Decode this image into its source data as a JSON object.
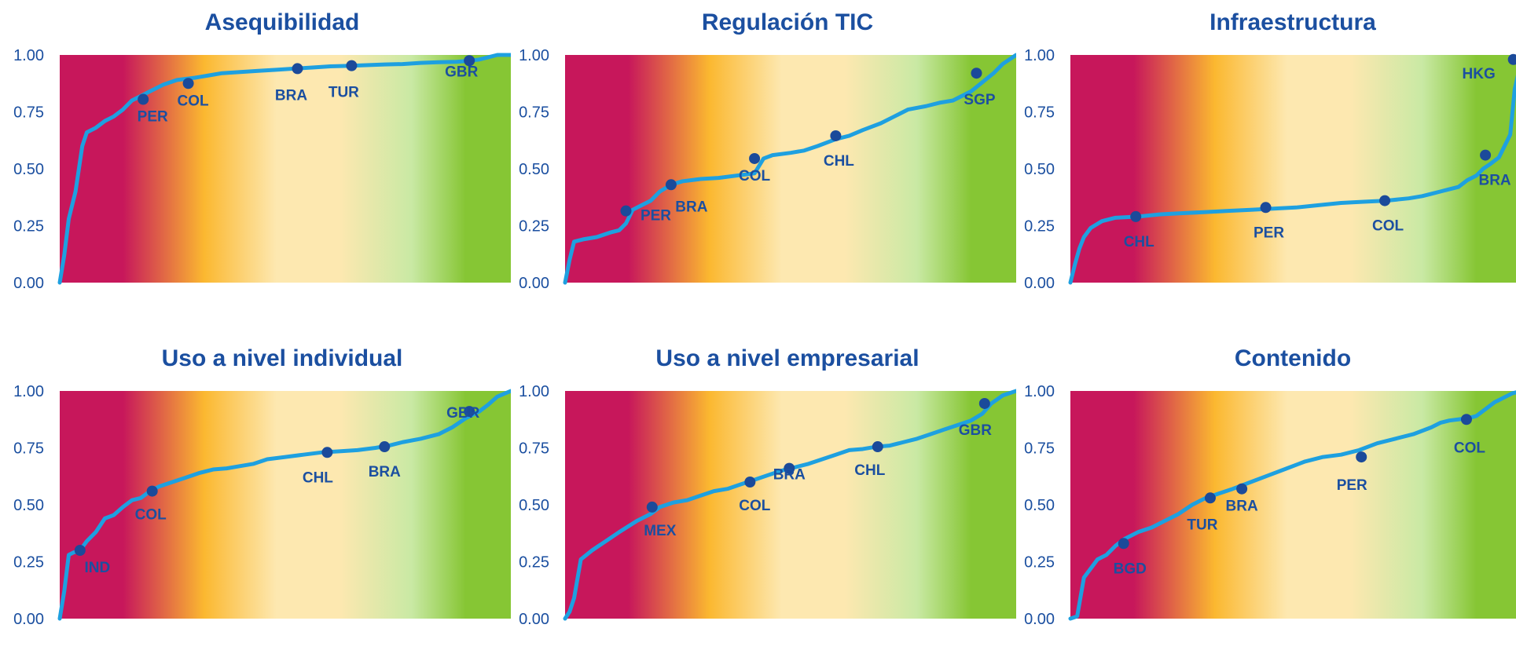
{
  "colors": {
    "title": "#1b4fa0",
    "curve": "#1ea0e0",
    "marker": "#1b4a9a",
    "band_low": "#c7175b",
    "band_mid_low": "#fbb830",
    "band_mid": "#fde8b0",
    "band_mid_high": "#c9e9a4",
    "band_high": "#86c634"
  },
  "chart_data": [
    {
      "type": "line",
      "title": "Asequibilidad",
      "xlabel": "",
      "ylabel": "",
      "yticks": [
        "0.00",
        "0.25",
        "0.50",
        "0.75",
        "1.00"
      ],
      "ylim": [
        0,
        1
      ],
      "xlim": [
        0,
        1
      ],
      "grid": false,
      "background": "red-to-green gradient",
      "series": [
        {
          "x": [
            0,
            0.01,
            0.02,
            0.035,
            0.05,
            0.06,
            0.08,
            0.1,
            0.12,
            0.14,
            0.16,
            0.18,
            0.2,
            0.23,
            0.26,
            0.3,
            0.33,
            0.36,
            0.4,
            0.44,
            0.48,
            0.52,
            0.56,
            0.6,
            0.64,
            0.68,
            0.72,
            0.76,
            0.8,
            0.84,
            0.88,
            0.91,
            0.93,
            0.95,
            0.97,
            1.0
          ],
          "y": [
            0,
            0.12,
            0.28,
            0.4,
            0.6,
            0.66,
            0.68,
            0.71,
            0.73,
            0.76,
            0.8,
            0.82,
            0.84,
            0.87,
            0.89,
            0.9,
            0.91,
            0.92,
            0.925,
            0.93,
            0.935,
            0.94,
            0.945,
            0.95,
            0.952,
            0.955,
            0.958,
            0.96,
            0.965,
            0.968,
            0.97,
            0.975,
            0.98,
            0.99,
            1.0,
            1.0
          ]
        }
      ],
      "markers": [
        {
          "label": "PER",
          "x": 0.185,
          "y": 0.805
        },
        {
          "label": "COL",
          "x": 0.285,
          "y": 0.875
        },
        {
          "label": "BRA",
          "x": 0.527,
          "y": 0.94
        },
        {
          "label": "TUR",
          "x": 0.647,
          "y": 0.953
        },
        {
          "label": "GBR",
          "x": 0.908,
          "y": 0.975
        }
      ]
    },
    {
      "type": "line",
      "title": "Regulación TIC",
      "xlabel": "",
      "ylabel": "",
      "yticks": [
        "0.00",
        "0.25",
        "0.50",
        "0.75",
        "1.00"
      ],
      "ylim": [
        0,
        1
      ],
      "xlim": [
        0,
        1
      ],
      "grid": false,
      "background": "red-to-green gradient",
      "series": [
        {
          "x": [
            0,
            0.01,
            0.02,
            0.04,
            0.07,
            0.1,
            0.12,
            0.135,
            0.15,
            0.17,
            0.19,
            0.21,
            0.235,
            0.26,
            0.3,
            0.34,
            0.38,
            0.42,
            0.44,
            0.46,
            0.5,
            0.53,
            0.56,
            0.6,
            0.63,
            0.66,
            0.7,
            0.73,
            0.76,
            0.8,
            0.83,
            0.86,
            0.9,
            0.925,
            0.95,
            0.97,
            1.0
          ],
          "y": [
            0,
            0.1,
            0.18,
            0.19,
            0.2,
            0.22,
            0.23,
            0.26,
            0.32,
            0.34,
            0.36,
            0.4,
            0.43,
            0.445,
            0.455,
            0.46,
            0.47,
            0.48,
            0.545,
            0.56,
            0.57,
            0.58,
            0.6,
            0.63,
            0.645,
            0.67,
            0.7,
            0.73,
            0.76,
            0.775,
            0.79,
            0.8,
            0.84,
            0.88,
            0.92,
            0.96,
            1.0
          ]
        }
      ],
      "markers": [
        {
          "label": "PER",
          "x": 0.135,
          "y": 0.315
        },
        {
          "label": "BRA",
          "x": 0.235,
          "y": 0.43
        },
        {
          "label": "COL",
          "x": 0.42,
          "y": 0.545
        },
        {
          "label": "CHL",
          "x": 0.6,
          "y": 0.645
        },
        {
          "label": "SGP",
          "x": 0.912,
          "y": 0.92
        }
      ]
    },
    {
      "type": "line",
      "title": "Infraestructura",
      "xlabel": "",
      "ylabel": "",
      "yticks": [
        "0.00",
        "0.25",
        "0.50",
        "0.75",
        "1.00"
      ],
      "ylim": [
        0,
        1
      ],
      "xlim": [
        0,
        1
      ],
      "grid": false,
      "background": "red-to-green gradient",
      "series": [
        {
          "x": [
            0,
            0.01,
            0.02,
            0.03,
            0.045,
            0.07,
            0.1,
            0.15,
            0.2,
            0.25,
            0.3,
            0.35,
            0.4,
            0.45,
            0.5,
            0.55,
            0.6,
            0.65,
            0.7,
            0.75,
            0.78,
            0.8,
            0.82,
            0.84,
            0.86,
            0.88,
            0.9,
            0.915,
            0.93,
            0.95,
            0.975,
            0.985,
            1.0
          ],
          "y": [
            0,
            0.08,
            0.15,
            0.2,
            0.24,
            0.27,
            0.285,
            0.29,
            0.3,
            0.305,
            0.31,
            0.315,
            0.32,
            0.325,
            0.33,
            0.34,
            0.35,
            0.355,
            0.36,
            0.37,
            0.38,
            0.39,
            0.4,
            0.41,
            0.42,
            0.45,
            0.47,
            0.5,
            0.52,
            0.55,
            0.65,
            0.85,
            0.98
          ]
        }
      ],
      "markers": [
        {
          "label": "CHL",
          "x": 0.145,
          "y": 0.29
        },
        {
          "label": "PER",
          "x": 0.433,
          "y": 0.33
        },
        {
          "label": "COL",
          "x": 0.697,
          "y": 0.36
        },
        {
          "label": "BRA",
          "x": 0.92,
          "y": 0.56
        },
        {
          "label": "HKG",
          "x": 0.982,
          "y": 0.98
        }
      ]
    },
    {
      "type": "line",
      "title": "Uso a nivel individual",
      "xlabel": "",
      "ylabel": "",
      "yticks": [
        "0.00",
        "0.25",
        "0.50",
        "0.75",
        "1.00"
      ],
      "ylim": [
        0,
        1
      ],
      "xlim": [
        0,
        1
      ],
      "grid": false,
      "background": "red-to-green gradient",
      "series": [
        {
          "x": [
            0,
            0.01,
            0.02,
            0.03,
            0.045,
            0.06,
            0.08,
            0.1,
            0.12,
            0.14,
            0.16,
            0.18,
            0.2,
            0.22,
            0.25,
            0.28,
            0.31,
            0.34,
            0.37,
            0.4,
            0.43,
            0.46,
            0.5,
            0.54,
            0.58,
            0.62,
            0.66,
            0.7,
            0.73,
            0.76,
            0.8,
            0.84,
            0.87,
            0.9,
            0.93,
            0.95,
            0.97,
            1.0
          ],
          "y": [
            0,
            0.12,
            0.28,
            0.29,
            0.3,
            0.34,
            0.38,
            0.44,
            0.455,
            0.49,
            0.52,
            0.53,
            0.56,
            0.58,
            0.6,
            0.62,
            0.64,
            0.655,
            0.66,
            0.67,
            0.68,
            0.7,
            0.71,
            0.72,
            0.73,
            0.735,
            0.74,
            0.75,
            0.76,
            0.775,
            0.79,
            0.81,
            0.84,
            0.88,
            0.91,
            0.94,
            0.975,
            1.0
          ]
        }
      ],
      "markers": [
        {
          "label": "IND",
          "x": 0.045,
          "y": 0.3
        },
        {
          "label": "COL",
          "x": 0.205,
          "y": 0.56
        },
        {
          "label": "CHL",
          "x": 0.593,
          "y": 0.73
        },
        {
          "label": "BRA",
          "x": 0.72,
          "y": 0.755
        },
        {
          "label": "GBR",
          "x": 0.908,
          "y": 0.91
        }
      ]
    },
    {
      "type": "line",
      "title": "Uso a nivel empresarial",
      "xlabel": "",
      "ylabel": "",
      "yticks": [
        "0.00",
        "0.25",
        "0.50",
        "0.75",
        "1.00"
      ],
      "ylim": [
        0,
        1
      ],
      "xlim": [
        0,
        1
      ],
      "grid": false,
      "background": "red-to-green gradient",
      "series": [
        {
          "x": [
            0,
            0.01,
            0.02,
            0.035,
            0.06,
            0.09,
            0.12,
            0.16,
            0.19,
            0.21,
            0.24,
            0.27,
            0.3,
            0.33,
            0.36,
            0.39,
            0.42,
            0.45,
            0.48,
            0.51,
            0.54,
            0.57,
            0.6,
            0.63,
            0.66,
            0.69,
            0.72,
            0.75,
            0.78,
            0.81,
            0.84,
            0.87,
            0.9,
            0.925,
            0.945,
            0.97,
            1.0
          ],
          "y": [
            0,
            0.03,
            0.09,
            0.26,
            0.3,
            0.34,
            0.38,
            0.43,
            0.46,
            0.49,
            0.51,
            0.52,
            0.54,
            0.56,
            0.57,
            0.59,
            0.61,
            0.63,
            0.65,
            0.665,
            0.68,
            0.7,
            0.72,
            0.74,
            0.745,
            0.755,
            0.76,
            0.775,
            0.79,
            0.81,
            0.83,
            0.85,
            0.87,
            0.9,
            0.945,
            0.98,
            1.0
          ]
        }
      ],
      "markers": [
        {
          "label": "MEX",
          "x": 0.193,
          "y": 0.49
        },
        {
          "label": "COL",
          "x": 0.41,
          "y": 0.6
        },
        {
          "label": "BRA",
          "x": 0.497,
          "y": 0.66
        },
        {
          "label": "CHL",
          "x": 0.693,
          "y": 0.755
        },
        {
          "label": "GBR",
          "x": 0.93,
          "y": 0.945
        }
      ]
    },
    {
      "type": "line",
      "title": "Contenido",
      "xlabel": "",
      "ylabel": "",
      "yticks": [
        "0.00",
        "0.25",
        "0.50",
        "0.75",
        "1.00"
      ],
      "ylim": [
        0,
        1
      ],
      "xlim": [
        0,
        1
      ],
      "grid": false,
      "background": "red-to-green gradient",
      "series": [
        {
          "x": [
            0,
            0.015,
            0.03,
            0.045,
            0.06,
            0.08,
            0.1,
            0.12,
            0.15,
            0.18,
            0.21,
            0.24,
            0.27,
            0.3,
            0.33,
            0.36,
            0.4,
            0.44,
            0.48,
            0.52,
            0.56,
            0.6,
            0.64,
            0.68,
            0.72,
            0.76,
            0.8,
            0.82,
            0.84,
            0.86,
            0.88,
            0.9,
            0.92,
            0.94,
            0.96,
            0.98,
            1.0
          ],
          "y": [
            0,
            0.01,
            0.18,
            0.22,
            0.26,
            0.28,
            0.32,
            0.35,
            0.38,
            0.4,
            0.43,
            0.46,
            0.5,
            0.53,
            0.55,
            0.57,
            0.6,
            0.63,
            0.66,
            0.69,
            0.71,
            0.72,
            0.74,
            0.77,
            0.79,
            0.81,
            0.84,
            0.86,
            0.87,
            0.875,
            0.88,
            0.89,
            0.92,
            0.95,
            0.97,
            0.99,
            1.0
          ]
        }
      ],
      "markers": [
        {
          "label": "BGD",
          "x": 0.118,
          "y": 0.33
        },
        {
          "label": "TUR",
          "x": 0.31,
          "y": 0.53
        },
        {
          "label": "BRA",
          "x": 0.38,
          "y": 0.57
        },
        {
          "label": "PER",
          "x": 0.645,
          "y": 0.71
        },
        {
          "label": "COL",
          "x": 0.878,
          "y": 0.875
        }
      ]
    }
  ]
}
